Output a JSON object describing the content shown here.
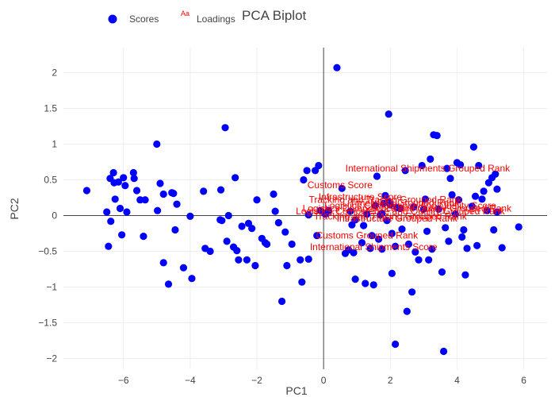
{
  "chart_data": {
    "type": "scatter",
    "title": "PCA Biplot",
    "xlabel": "PC1",
    "ylabel": "PC2",
    "xlim": [
      -7.8,
      6.7
    ],
    "ylim": [
      -2.15,
      2.35
    ],
    "xticks": [
      -6,
      -4,
      -2,
      0,
      2,
      4,
      6
    ],
    "yticks": [
      -2,
      -1.5,
      -1,
      -0.5,
      0,
      0.5,
      1,
      1.5,
      2
    ],
    "grid": true,
    "zero_lines": true,
    "legend_position": "top-left",
    "colors": {
      "scores": "#0000ff",
      "loadings": "#ff0000",
      "grid": "#eeeeee",
      "zeroline": "#444444"
    },
    "legend": [
      {
        "name": "Scores",
        "symbol": "circle",
        "color": "#0000ff"
      },
      {
        "name": "Loadings",
        "symbol": "Aa",
        "color": "#ff0000"
      }
    ],
    "series": [
      {
        "name": "Scores",
        "mode": "markers",
        "points": [
          [
            -7.1,
            0.35
          ],
          [
            -6.5,
            0.05
          ],
          [
            -6.45,
            -0.43
          ],
          [
            -6.4,
            0.52
          ],
          [
            -6.38,
            -0.08
          ],
          [
            -6.3,
            0.6
          ],
          [
            -6.28,
            0.46
          ],
          [
            -6.25,
            0.23
          ],
          [
            -6.15,
            0.47
          ],
          [
            -6.1,
            0.1
          ],
          [
            -6.05,
            -0.27
          ],
          [
            -6.0,
            0.53
          ],
          [
            -5.95,
            0.42
          ],
          [
            -5.9,
            0.05
          ],
          [
            -5.7,
            0.6
          ],
          [
            -5.68,
            0.52
          ],
          [
            -5.6,
            0.35
          ],
          [
            -5.5,
            0.22
          ],
          [
            -5.4,
            -0.29
          ],
          [
            -5.35,
            0.22
          ],
          [
            -5.0,
            1.0
          ],
          [
            -4.98,
            0.07
          ],
          [
            -4.9,
            0.45
          ],
          [
            -4.8,
            0.3
          ],
          [
            -4.8,
            -0.66
          ],
          [
            -4.65,
            -0.96
          ],
          [
            -4.55,
            0.32
          ],
          [
            -4.5,
            0.31
          ],
          [
            -4.45,
            -0.2
          ],
          [
            -4.4,
            0.16
          ],
          [
            -4.2,
            -0.73
          ],
          [
            -4.0,
            -0.01
          ],
          [
            -3.95,
            -0.88
          ],
          [
            -3.6,
            0.34
          ],
          [
            -3.55,
            -0.46
          ],
          [
            -3.4,
            -0.5
          ],
          [
            -3.1,
            -0.06
          ],
          [
            -3.08,
            0.36
          ],
          [
            -3.05,
            -0.07
          ],
          [
            -2.95,
            1.23
          ],
          [
            -2.9,
            -0.36
          ],
          [
            -2.85,
            0.0
          ],
          [
            -2.7,
            -0.44
          ],
          [
            -2.65,
            0.53
          ],
          [
            -2.6,
            -0.49
          ],
          [
            -2.55,
            -0.62
          ],
          [
            -2.45,
            -0.15
          ],
          [
            -2.3,
            -0.62
          ],
          [
            -2.25,
            -0.11
          ],
          [
            -2.15,
            -0.18
          ],
          [
            -2.05,
            -0.7
          ],
          [
            -2.0,
            0.22
          ],
          [
            -1.85,
            -0.32
          ],
          [
            -1.75,
            -0.38
          ],
          [
            -1.7,
            -0.4
          ],
          [
            -1.5,
            0.3
          ],
          [
            -1.45,
            0.06
          ],
          [
            -1.35,
            -0.1
          ],
          [
            -1.25,
            -1.2
          ],
          [
            -1.15,
            -0.23
          ],
          [
            -1.1,
            -0.7
          ],
          [
            -0.95,
            -0.4
          ],
          [
            -0.7,
            -0.62
          ],
          [
            -0.65,
            -0.93
          ],
          [
            -0.6,
            0.5
          ],
          [
            -0.5,
            0.63
          ],
          [
            -0.45,
            -0.61
          ],
          [
            -0.45,
            0.01
          ],
          [
            -0.25,
            0.63
          ],
          [
            -0.2,
            -0.28
          ],
          [
            -0.15,
            0.7
          ],
          [
            -0.1,
            0.07
          ],
          [
            0.05,
            0.02
          ],
          [
            0.15,
            0.07
          ],
          [
            0.4,
            2.07
          ],
          [
            0.55,
            0.38
          ],
          [
            0.65,
            -0.53
          ],
          [
            0.75,
            -0.48
          ],
          [
            0.8,
            0.06
          ],
          [
            0.85,
            -0.13
          ],
          [
            0.9,
            -0.52
          ],
          [
            0.95,
            -0.06
          ],
          [
            0.95,
            -0.89
          ],
          [
            1.15,
            -0.38
          ],
          [
            1.2,
            -0.14
          ],
          [
            1.25,
            -0.95
          ],
          [
            1.3,
            0.02
          ],
          [
            1.4,
            -0.46
          ],
          [
            1.45,
            -0.28
          ],
          [
            1.5,
            -0.97
          ],
          [
            1.55,
            0.14
          ],
          [
            1.6,
            0.55
          ],
          [
            1.65,
            -0.33
          ],
          [
            1.7,
            0.01
          ],
          [
            1.75,
            0.03
          ],
          [
            1.75,
            -0.47
          ],
          [
            1.8,
            0.17
          ],
          [
            1.85,
            0.28
          ],
          [
            1.9,
            -0.07
          ],
          [
            1.95,
            1.42
          ],
          [
            1.95,
            0.19
          ],
          [
            2.0,
            0.15
          ],
          [
            2.05,
            -0.81
          ],
          [
            2.05,
            -0.25
          ],
          [
            2.15,
            -0.43
          ],
          [
            2.15,
            -1.8
          ],
          [
            2.2,
            0.11
          ],
          [
            2.3,
            0.1
          ],
          [
            2.35,
            -0.19
          ],
          [
            2.45,
            0.63
          ],
          [
            2.5,
            -1.34
          ],
          [
            2.55,
            -0.4
          ],
          [
            2.65,
            -1.07
          ],
          [
            2.7,
            0.12
          ],
          [
            2.75,
            -0.51
          ],
          [
            2.85,
            -0.62
          ],
          [
            2.95,
            0.7
          ],
          [
            3.0,
            0.09
          ],
          [
            3.05,
            0.23
          ],
          [
            3.1,
            -0.22
          ],
          [
            3.15,
            -0.62
          ],
          [
            3.2,
            0.79
          ],
          [
            3.25,
            -0.47
          ],
          [
            3.3,
            1.13
          ],
          [
            3.4,
            1.12
          ],
          [
            3.45,
            0.09
          ],
          [
            3.55,
            -0.79
          ],
          [
            3.6,
            -1.9
          ],
          [
            3.65,
            -0.17
          ],
          [
            3.7,
            0.66
          ],
          [
            3.75,
            -0.36
          ],
          [
            3.8,
            0.52
          ],
          [
            3.85,
            0.29
          ],
          [
            3.95,
            0.02
          ],
          [
            4.0,
            0.74
          ],
          [
            4.05,
            0.22
          ],
          [
            4.1,
            0.71
          ],
          [
            4.15,
            -0.3
          ],
          [
            4.2,
            -0.2
          ],
          [
            4.25,
            -0.83
          ],
          [
            4.3,
            -0.46
          ],
          [
            4.45,
            0.13
          ],
          [
            4.5,
            0.96
          ],
          [
            4.55,
            0.27
          ],
          [
            4.6,
            -0.42
          ],
          [
            4.65,
            0.7
          ],
          [
            4.75,
            0.23
          ],
          [
            4.8,
            0.34
          ],
          [
            4.9,
            0.07
          ],
          [
            4.95,
            0.46
          ],
          [
            5.05,
            0.53
          ],
          [
            5.1,
            -0.2
          ],
          [
            5.15,
            0.58
          ],
          [
            5.2,
            0.37
          ],
          [
            5.2,
            0.05
          ],
          [
            5.35,
            -0.45
          ],
          [
            5.85,
            -0.16
          ]
        ]
      },
      {
        "name": "Loadings",
        "mode": "text",
        "points": [
          {
            "x": 3.12,
            "y": 0.66,
            "label": "International Shipments Grouped Rank"
          },
          {
            "x": 0.49,
            "y": 0.43,
            "label": "Customs Score"
          },
          {
            "x": 1.1,
            "y": 0.26,
            "label": "Infrastructure Score"
          },
          {
            "x": 1.85,
            "y": 0.22,
            "label": "Tracking and Tracing Grouped Rank"
          },
          {
            "x": 2.42,
            "y": 0.18,
            "label": "Timeliness Grouped Rank"
          },
          {
            "x": 2.6,
            "y": 0.14,
            "label": "Logistics Competence and Quality Score"
          },
          {
            "x": 2.5,
            "y": 0.1,
            "label": "Logistics Competence and Quality Grouped Rank"
          },
          {
            "x": 2.3,
            "y": 0.06,
            "label": "Logistics Competence and Quality Grouped Rank"
          },
          {
            "x": 2.0,
            "y": -0.01,
            "label": "Tracking and Tracing Grouped Rank"
          },
          {
            "x": 2.2,
            "y": -0.04,
            "label": "Infrastructure Grouped Rank"
          },
          {
            "x": 1.3,
            "y": -0.28,
            "label": "Customs Grouped Rank"
          },
          {
            "x": 1.5,
            "y": -0.44,
            "label": "International Shipments Score"
          }
        ]
      }
    ]
  }
}
